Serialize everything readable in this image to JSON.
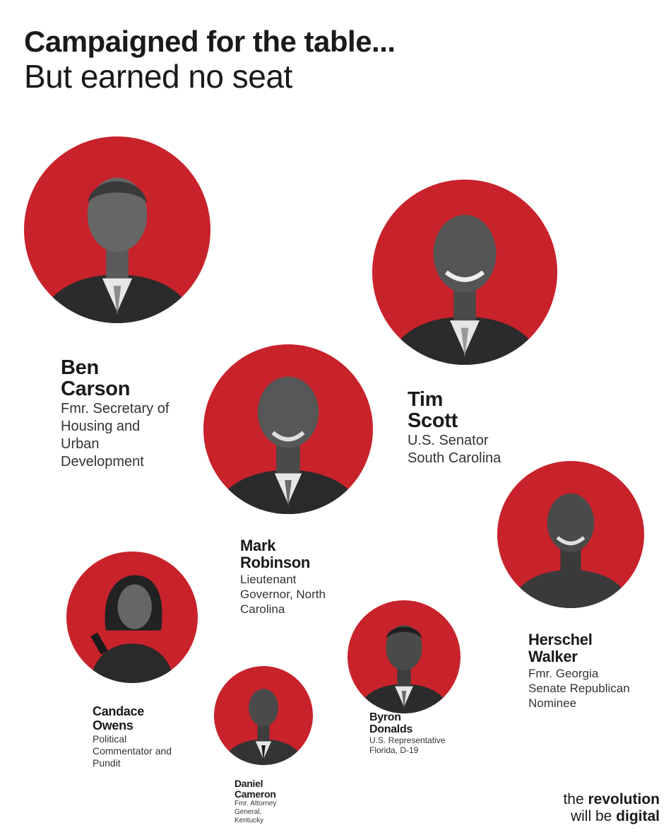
{
  "headline": {
    "line1": "Campaigned for the table...",
    "line2": "But earned no seat"
  },
  "colors": {
    "accent": "#c8222b",
    "text": "#1a1a1a"
  },
  "people": {
    "carson": {
      "name1": "Ben",
      "name2": "Carson",
      "role": [
        "Fmr. Secretary of",
        "Housing and",
        "Urban",
        "Development"
      ]
    },
    "scott": {
      "name1": "Tim",
      "name2": "Scott",
      "role": [
        "U.S. Senator",
        "South Carolina"
      ]
    },
    "robinson": {
      "name1": "Mark",
      "name2": "Robinson",
      "role": [
        "Lieutenant",
        "Governor, North",
        "Carolina"
      ]
    },
    "walker": {
      "name1": "Herschel",
      "name2": "Walker",
      "role": [
        "Fmr. Georgia",
        "Senate Republican",
        "Nominee"
      ]
    },
    "owens": {
      "name1": "Candace",
      "name2": "Owens",
      "role": [
        "Political",
        "Commentator and",
        "Pundit"
      ]
    },
    "donalds": {
      "name1": "Byron",
      "name2": "Donalds",
      "role": [
        "U.S. Representative",
        "Florida, D-19"
      ]
    },
    "cameron": {
      "name1": "Daniel",
      "name2": "Cameron",
      "role": [
        "Fmr. Attorney",
        "General,",
        "Kentucky"
      ]
    }
  },
  "brand": {
    "line1_pre": "the ",
    "line1_bold": "revolution",
    "line2_pre": "will be ",
    "line2_bold": "digital"
  }
}
